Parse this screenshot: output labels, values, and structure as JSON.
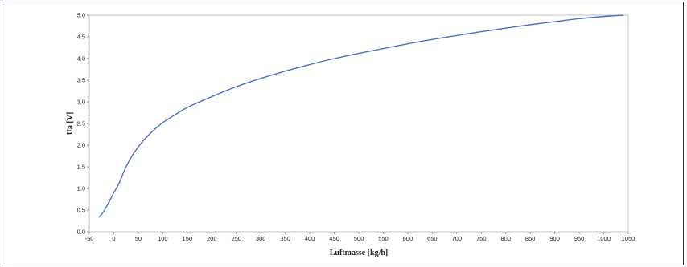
{
  "chart_data": {
    "type": "line",
    "title": "",
    "xlabel": "Luftmasse [kg/h]",
    "ylabel": "Ua [V]",
    "xlim": [
      -50,
      1050
    ],
    "ylim": [
      0.0,
      5.0
    ],
    "x_ticks": [
      "-50",
      "0",
      "50",
      "100",
      "150",
      "200",
      "250",
      "300",
      "350",
      "400",
      "450",
      "500",
      "550",
      "600",
      "650",
      "700",
      "750",
      "800",
      "850",
      "900",
      "950",
      "1000",
      "1050"
    ],
    "y_ticks": [
      "0.0",
      "0.5",
      "1.0",
      "1.5",
      "2.0",
      "2.5",
      "3.0",
      "3.5",
      "4.0",
      "4.5",
      "5.0"
    ],
    "grid": false,
    "legend": "none",
    "series_color": "#4a72c4",
    "series": [
      {
        "x": [
          -30,
          -20,
          -10,
          0,
          10,
          25,
          40,
          60,
          80,
          100,
          125,
          150,
          200,
          250,
          300,
          350,
          400,
          450,
          500,
          550,
          600,
          650,
          700,
          750,
          800,
          850,
          900,
          950,
          1000,
          1040
        ],
        "y": [
          0.33,
          0.48,
          0.68,
          0.9,
          1.1,
          1.5,
          1.8,
          2.1,
          2.33,
          2.52,
          2.7,
          2.87,
          3.12,
          3.35,
          3.54,
          3.71,
          3.86,
          4.0,
          4.12,
          4.23,
          4.34,
          4.44,
          4.53,
          4.62,
          4.7,
          4.78,
          4.85,
          4.92,
          4.97,
          5.0
        ]
      }
    ]
  }
}
